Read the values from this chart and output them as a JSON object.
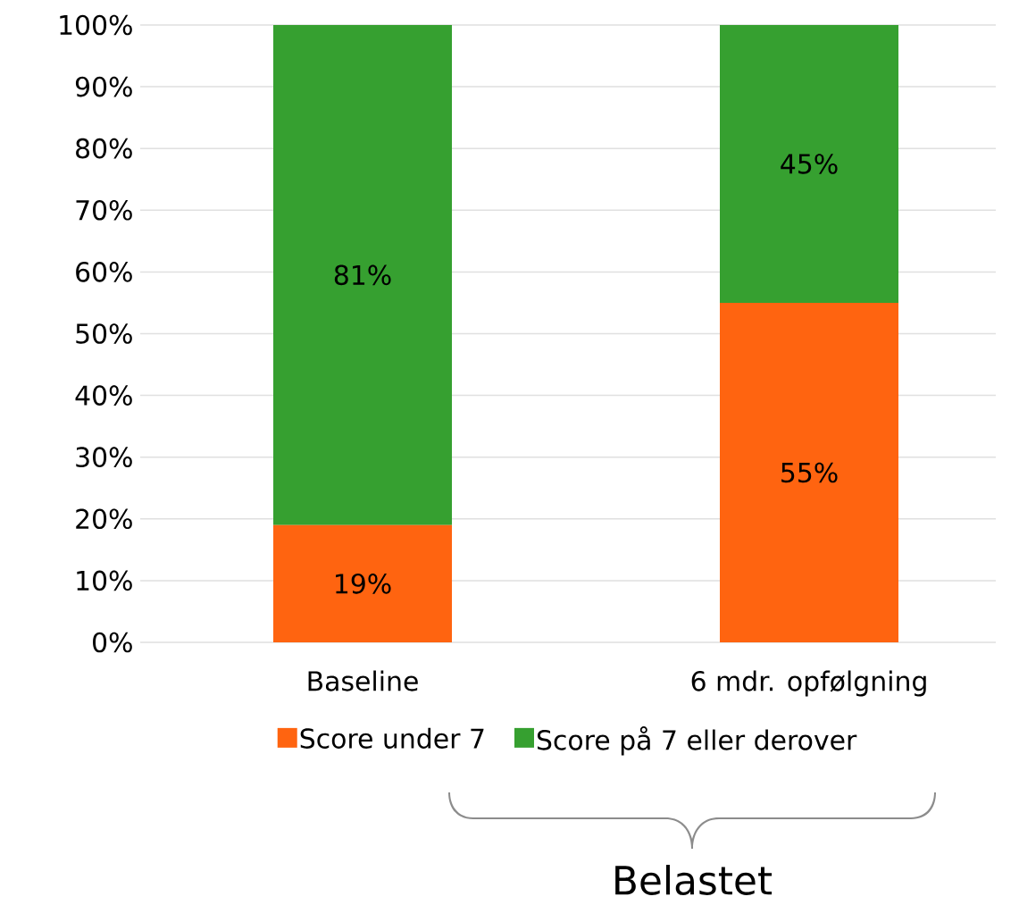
{
  "chart_data": {
    "type": "bar",
    "stacked": true,
    "categories": [
      "Baseline",
      "6 mdr. opfølgning"
    ],
    "series": [
      {
        "name": "Score under 7",
        "color": "#ff6410",
        "values": [
          19,
          55
        ],
        "value_labels": [
          "19%",
          "55%"
        ]
      },
      {
        "name": "Score på 7 eller derover",
        "color": "#36a030",
        "values": [
          81,
          45
        ],
        "value_labels": [
          "81%",
          "45%"
        ]
      }
    ],
    "ylim": [
      0,
      100
    ],
    "yticks": [
      {
        "value": 0,
        "label": "0%"
      },
      {
        "value": 10,
        "label": "10%"
      },
      {
        "value": 20,
        "label": "20%"
      },
      {
        "value": 30,
        "label": "30%"
      },
      {
        "value": 40,
        "label": "40%"
      },
      {
        "value": 50,
        "label": "50%"
      },
      {
        "value": 60,
        "label": "60%"
      },
      {
        "value": 70,
        "label": "70%"
      },
      {
        "value": 80,
        "label": "80%"
      },
      {
        "value": 90,
        "label": "90%"
      },
      {
        "value": 100,
        "label": "100%"
      }
    ],
    "grid": "y",
    "legend": "bottom",
    "annotations": [
      "Belastet"
    ]
  }
}
